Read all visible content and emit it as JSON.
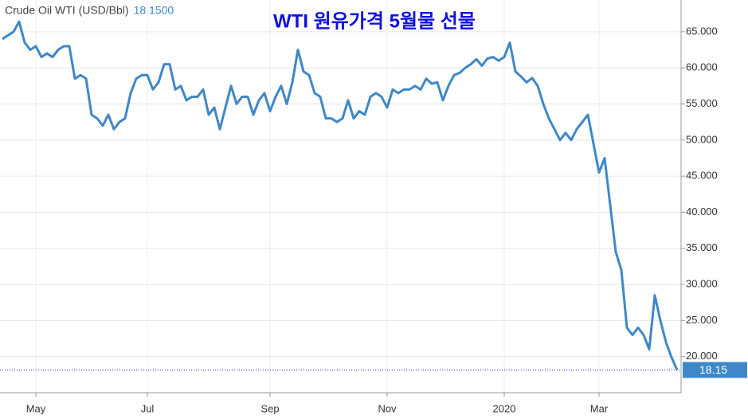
{
  "chart_data": {
    "type": "line",
    "title": "Crude Oil WTI (USD/Bbl)",
    "price": "18.1500",
    "annotation": "WTI 원유가격 5월물 선물",
    "categories": [
      null,
      null,
      null,
      null,
      null,
      null,
      "May",
      null,
      null,
      null,
      null,
      null,
      null,
      null,
      null,
      null,
      null,
      null,
      null,
      null,
      null,
      null,
      null,
      null,
      null,
      null,
      "Jul",
      null,
      null,
      null,
      null,
      null,
      null,
      null,
      null,
      null,
      null,
      null,
      null,
      null,
      null,
      null,
      null,
      null,
      null,
      null,
      null,
      null,
      "Sep",
      null,
      null,
      null,
      null,
      null,
      null,
      null,
      null,
      null,
      null,
      null,
      null,
      null,
      null,
      null,
      null,
      null,
      null,
      null,
      null,
      "Nov",
      null,
      null,
      null,
      null,
      null,
      null,
      null,
      null,
      null,
      null,
      null,
      null,
      null,
      null,
      null,
      null,
      null,
      null,
      null,
      null,
      "2020",
      null,
      null,
      null,
      null,
      null,
      null,
      null,
      null,
      null,
      null,
      null,
      null,
      null,
      null,
      null,
      null,
      "Mar",
      null,
      null,
      null,
      null,
      null,
      null,
      null,
      null,
      null,
      null,
      null,
      null,
      null,
      null
    ],
    "series": [
      {
        "name": "Crude Oil WTI",
        "color": "#3f87c9",
        "values": [
          64,
          64.5,
          65,
          66.4,
          63.5,
          62.5,
          63,
          61.5,
          62,
          61.5,
          62.5,
          63,
          63,
          58.5,
          59,
          58.5,
          53.5,
          53,
          52,
          53.5,
          51.5,
          52.5,
          53,
          56.5,
          58.5,
          59,
          59,
          57,
          58,
          60.5,
          60.5,
          57,
          57.5,
          55.5,
          56,
          56,
          57,
          53.5,
          54.5,
          51.5,
          54.5,
          57.5,
          55,
          56,
          56,
          53.5,
          55.5,
          56.5,
          54,
          56,
          57.5,
          55,
          58,
          62.5,
          59.5,
          59,
          56.5,
          56,
          53,
          53,
          52.5,
          53,
          55.5,
          53,
          54,
          53.5,
          56,
          56.5,
          56,
          54.5,
          57,
          56.5,
          57,
          57,
          57.5,
          57,
          58.5,
          57.8,
          58,
          55.5,
          57.5,
          59,
          59.3,
          60,
          60.5,
          61.2,
          60.3,
          61.3,
          61.5,
          61,
          61.5,
          63.5,
          59.5,
          58.8,
          58,
          58.6,
          57.5,
          55,
          53,
          51.5,
          50,
          51,
          50,
          51.5,
          52.5,
          53.5,
          49.5,
          45.5,
          47.5,
          41,
          34.5,
          32,
          24,
          23,
          24,
          23,
          21,
          28.5,
          25,
          22,
          19.9,
          18.15
        ]
      }
    ],
    "ylim": [
      15,
      69.4
    ],
    "yticks": [
      {
        "value": 20,
        "label": "20.000"
      },
      {
        "value": 25,
        "label": "25.000"
      },
      {
        "value": 30,
        "label": "30.000"
      },
      {
        "value": 35,
        "label": "35.000"
      },
      {
        "value": 40,
        "label": "40.000"
      },
      {
        "value": 45,
        "label": "45.000"
      },
      {
        "value": 50,
        "label": "50.000"
      },
      {
        "value": 55,
        "label": "55.000"
      },
      {
        "value": 60,
        "label": "60.000"
      },
      {
        "value": 65,
        "label": "65.000"
      }
    ],
    "grid": true
  }
}
